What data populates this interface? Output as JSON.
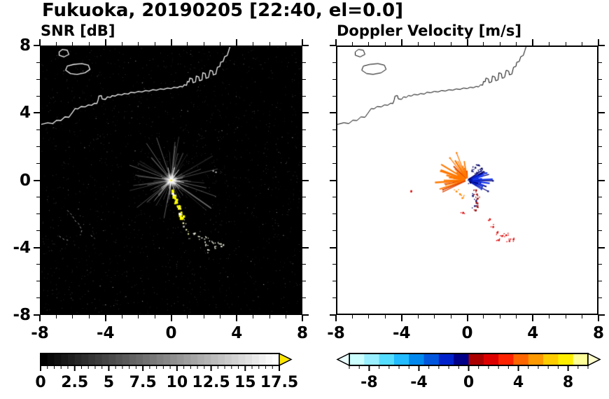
{
  "title": "Fukuoka, 20190205 [22:40, el=0.0]",
  "panels": [
    {
      "title": "SNR [dB]"
    },
    {
      "title": "Doppler Velocity [m/s]"
    }
  ],
  "axis": {
    "xmin": -8,
    "xmax": 8,
    "ymin": -8,
    "ymax": 8,
    "major_tick_values": [
      -8,
      -4,
      0,
      4,
      8
    ],
    "minor_tick_step": 1,
    "x_tick_labels": [
      "-8",
      "-4",
      "0",
      "4",
      "8"
    ],
    "y_tick_labels": [
      "8",
      "4",
      "0",
      "-4",
      "-8"
    ]
  },
  "coastline": {
    "main": [
      [
        -8,
        3.35
      ],
      [
        -7.6,
        3.45
      ],
      [
        -7.3,
        3.4
      ],
      [
        -7.05,
        3.6
      ],
      [
        -6.8,
        3.58
      ],
      [
        -6.55,
        3.8
      ],
      [
        -6.3,
        3.78
      ],
      [
        -6.1,
        4.05
      ],
      [
        -5.92,
        4.3
      ],
      [
        -5.75,
        4.28
      ],
      [
        -5.55,
        4.42
      ],
      [
        -5.3,
        4.4
      ],
      [
        -5.1,
        4.52
      ],
      [
        -4.9,
        4.5
      ],
      [
        -4.72,
        4.62
      ],
      [
        -4.58,
        4.6
      ],
      [
        -4.5,
        4.82
      ],
      [
        -4.45,
        5.05
      ],
      [
        -4.3,
        5.08
      ],
      [
        -4.25,
        4.88
      ],
      [
        -4.05,
        4.85
      ],
      [
        -3.93,
        5.0
      ],
      [
        -3.75,
        4.97
      ],
      [
        -3.63,
        5.08
      ],
      [
        -3.45,
        5.05
      ],
      [
        -3.28,
        5.15
      ],
      [
        -3.05,
        5.12
      ],
      [
        -2.88,
        5.2
      ],
      [
        -2.65,
        5.17
      ],
      [
        -2.48,
        5.28
      ],
      [
        -2.25,
        5.25
      ],
      [
        -2.03,
        5.33
      ],
      [
        -1.8,
        5.3
      ],
      [
        -1.58,
        5.38
      ],
      [
        -1.35,
        5.35
      ],
      [
        -1.13,
        5.43
      ],
      [
        -0.9,
        5.4
      ],
      [
        -0.68,
        5.48
      ],
      [
        -0.45,
        5.45
      ],
      [
        -0.23,
        5.53
      ],
      [
        0.0,
        5.5
      ],
      [
        0.18,
        5.58
      ],
      [
        0.38,
        5.55
      ],
      [
        0.55,
        5.63
      ],
      [
        0.7,
        5.6
      ],
      [
        0.82,
        5.73
      ],
      [
        0.95,
        5.7
      ],
      [
        1.0,
        5.93
      ],
      [
        1.1,
        5.9
      ],
      [
        1.15,
        6.13
      ],
      [
        1.3,
        6.08
      ],
      [
        1.35,
        5.85
      ],
      [
        1.5,
        5.9
      ],
      [
        1.55,
        6.25
      ],
      [
        1.7,
        6.2
      ],
      [
        1.75,
        5.97
      ],
      [
        1.9,
        6.02
      ],
      [
        1.95,
        6.45
      ],
      [
        2.1,
        6.4
      ],
      [
        2.15,
        6.12
      ],
      [
        2.3,
        6.17
      ],
      [
        2.4,
        6.6
      ],
      [
        2.55,
        6.55
      ],
      [
        2.6,
        6.32
      ],
      [
        2.75,
        6.37
      ],
      [
        2.85,
        6.78
      ],
      [
        3.0,
        6.83
      ],
      [
        3.05,
        7.08
      ],
      [
        3.2,
        7.12
      ],
      [
        3.3,
        7.42
      ],
      [
        3.45,
        7.48
      ],
      [
        3.55,
        7.78
      ],
      [
        3.62,
        8.0
      ]
    ],
    "islands": [
      [
        [
          -6.5,
          6.6
        ],
        [
          -6.2,
          6.4
        ],
        [
          -5.8,
          6.35
        ],
        [
          -5.3,
          6.45
        ],
        [
          -5.0,
          6.65
        ],
        [
          -5.1,
          6.9
        ],
        [
          -5.5,
          7.0
        ],
        [
          -6.0,
          6.95
        ],
        [
          -6.4,
          6.85
        ]
      ],
      [
        [
          -6.9,
          7.5
        ],
        [
          -6.6,
          7.4
        ],
        [
          -6.3,
          7.55
        ],
        [
          -6.4,
          7.8
        ],
        [
          -6.7,
          7.85
        ],
        [
          -6.9,
          7.7
        ]
      ]
    ]
  },
  "chart_data": [
    {
      "type": "heatmap",
      "panel": "snr",
      "title": "SNR [dB]",
      "xlim": [
        -8,
        8
      ],
      "ylim": [
        -8,
        8
      ],
      "background": "#000000",
      "coast_color": "#f2f2f2",
      "radar_center": [
        0,
        0
      ],
      "starburst": {
        "rays": 95,
        "max_range": 3.0,
        "ray_color": "#c8c8c8"
      },
      "echo_track": {
        "color": "#ffff00",
        "points": [
          [
            0.05,
            -0.65
          ],
          [
            0.13,
            -0.85
          ],
          [
            0.2,
            -1.05
          ],
          [
            0.28,
            -1.28
          ],
          [
            0.36,
            -1.5
          ],
          [
            0.45,
            -1.73
          ],
          [
            0.53,
            -1.95
          ],
          [
            0.62,
            -2.18
          ],
          [
            0.71,
            -2.42
          ],
          [
            0.8,
            -2.66
          ],
          [
            0.9,
            -2.9
          ],
          [
            1.0,
            -3.15
          ],
          [
            1.1,
            -3.4
          ]
        ]
      },
      "scatter_echoes": {
        "color": "#e8e8d8",
        "points": [
          [
            1.45,
            -3.2
          ],
          [
            1.7,
            -3.4
          ],
          [
            1.95,
            -3.55
          ],
          [
            2.2,
            -3.45
          ],
          [
            2.45,
            -3.65
          ],
          [
            2.7,
            -3.85
          ],
          [
            2.95,
            -3.75
          ],
          [
            2.15,
            -3.85
          ],
          [
            2.6,
            -4.05
          ],
          [
            3.1,
            -3.95
          ],
          [
            2.35,
            -4.2
          ]
        ]
      },
      "clutter_wisps": {
        "color": "#9a9a9a",
        "polylines": [
          [
            [
              -6.4,
              -1.8
            ],
            [
              -6.1,
              -2.1
            ],
            [
              -5.9,
              -2.45
            ],
            [
              -5.7,
              -2.6
            ],
            [
              -5.5,
              -3.0
            ],
            [
              -5.6,
              -3.3
            ]
          ],
          [
            [
              -6.9,
              -3.35
            ],
            [
              -6.6,
              -3.55
            ],
            [
              -6.35,
              -3.6
            ]
          ],
          [
            [
              -4.95,
              -3.3
            ],
            [
              -4.7,
              -3.5
            ]
          ]
        ]
      },
      "isolated_specks": {
        "color": "#cccccc",
        "points": [
          [
            2.55,
            0.6
          ],
          [
            2.72,
            0.52
          ]
        ]
      },
      "colorbar": {
        "min": 0,
        "max": 17.5,
        "tick_values": [
          0,
          2.5,
          5,
          7.5,
          10,
          12.5,
          15,
          17.5
        ],
        "tick_labels": [
          "0",
          "2.5",
          "5",
          "7.5",
          "10",
          "12.5",
          "15",
          "17.5"
        ],
        "minor_tick_step": 0.5,
        "gradient_from": "#000000",
        "gradient_to": "#ffffff",
        "segments": 35,
        "over_arrow_color": "#ffe800"
      }
    },
    {
      "type": "heatmap",
      "panel": "velocity",
      "title": "Doppler Velocity [m/s]",
      "xlim": [
        -8,
        8
      ],
      "ylim": [
        -8,
        8
      ],
      "background": "#ffffff",
      "coast_color": "#000000",
      "radar_center": [
        0,
        0
      ],
      "fans": [
        {
          "name": "away-fan",
          "color": "#ff7800",
          "alt_color": "#e04400",
          "angle_start": 95,
          "angle_end": 205,
          "rays": 26,
          "min_len": 0.5,
          "max_len": 2.0
        },
        {
          "name": "toward-fan",
          "color": "#1133ee",
          "alt_color": "#000077",
          "angle_start": -32,
          "angle_end": 32,
          "rays": 22,
          "min_len": 0.4,
          "max_len": 1.6
        }
      ],
      "speck_groups": [
        {
          "name": "navy-specks",
          "color": "#000066",
          "points": [
            [
              0.05,
              0.1
            ],
            [
              0.15,
              -0.1
            ],
            [
              0.25,
              0.6
            ],
            [
              0.45,
              0.8
            ],
            [
              0.65,
              0.95
            ],
            [
              0.85,
              0.75
            ],
            [
              0.55,
              0.5
            ],
            [
              0.95,
              0.55
            ],
            [
              0.3,
              -0.9
            ],
            [
              0.5,
              -1.2
            ],
            [
              0.42,
              -1.5
            ]
          ]
        },
        {
          "name": "dark-red-streak",
          "color": "#990000",
          "points": [
            [
              0.5,
              -0.55
            ],
            [
              0.55,
              -0.8
            ],
            [
              0.6,
              -1.05
            ],
            [
              0.52,
              -1.3
            ],
            [
              0.58,
              -1.55
            ],
            [
              0.48,
              -1.75
            ]
          ]
        },
        {
          "name": "red-specks",
          "color": "#dd0000",
          "points": [
            [
              1.35,
              -2.3
            ],
            [
              1.55,
              -2.75
            ],
            [
              1.8,
              -3.1
            ],
            [
              2.1,
              -3.3
            ],
            [
              2.35,
              -3.25
            ],
            [
              2.55,
              -3.6
            ],
            [
              2.8,
              -3.5
            ],
            [
              1.9,
              -3.55
            ],
            [
              -0.3,
              -1.9
            ],
            [
              -3.5,
              -0.6
            ]
          ]
        },
        {
          "name": "orange-specks",
          "color": "#ff8800",
          "points": [
            [
              -0.5,
              -0.78
            ],
            [
              -0.72,
              -0.62
            ],
            [
              -0.35,
              -1.02
            ]
          ]
        }
      ],
      "colorbar": {
        "min": -9.6,
        "max": 9.6,
        "tick_values": [
          -8,
          -4,
          0,
          4,
          8
        ],
        "tick_labels": [
          "-8",
          "-4",
          "0",
          "4",
          "8"
        ],
        "minor_tick_step": 0.8,
        "segment_colors": [
          "#ccffff",
          "#99eeff",
          "#55ddff",
          "#22bbff",
          "#0088ee",
          "#0055dd",
          "#0022cc",
          "#000088",
          "#aa0000",
          "#dd0000",
          "#ff2200",
          "#ff6600",
          "#ff9900",
          "#ffcc00",
          "#ffee00",
          "#ffff99"
        ],
        "under_arrow_color": "#eaffff",
        "over_arrow_color": "#ffffcc"
      }
    }
  ]
}
